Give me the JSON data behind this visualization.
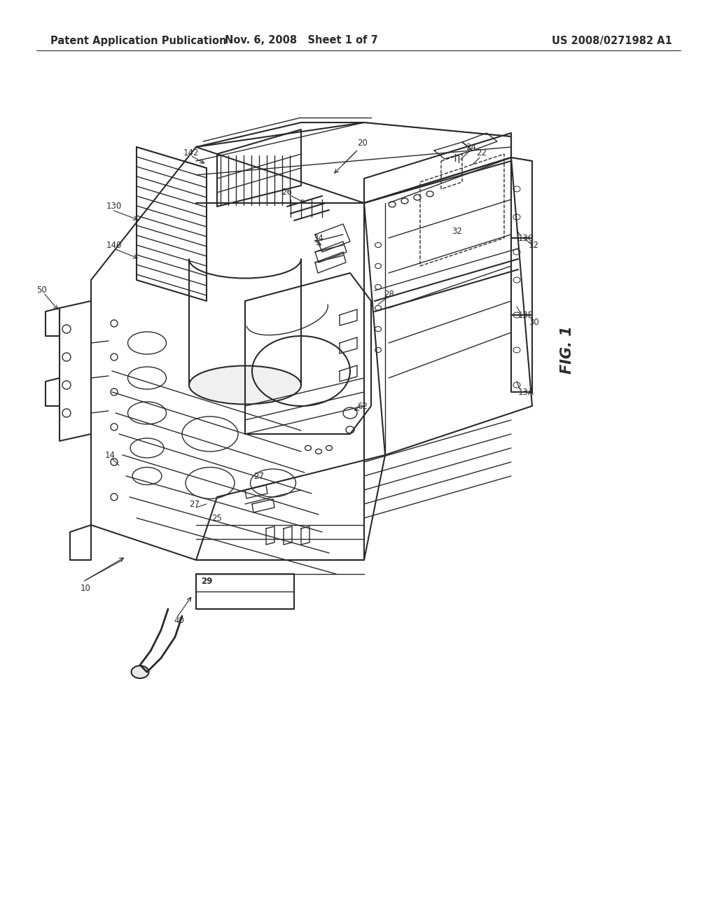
{
  "bg_color": "#ffffff",
  "header_left": "Patent Application Publication",
  "header_center": "Nov. 6, 2008   Sheet 1 of 7",
  "header_right": "US 2008/0271982 A1",
  "fig_label": "FIG. 1",
  "line_color": "#2a2a2a",
  "label_fontsize": 8.5,
  "fig_label_fontsize": 15,
  "header_fontsize": 10.5
}
